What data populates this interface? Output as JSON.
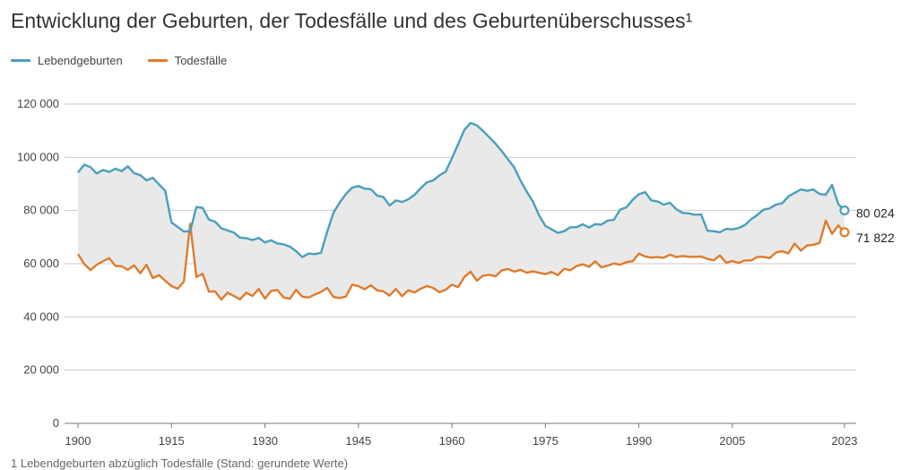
{
  "title": "Entwicklung der Geburten, der Todesfälle und des Geburtenüberschusses¹",
  "legend": [
    {
      "name": "Lebendgeburten",
      "color": "#4a9fbc"
    },
    {
      "name": "Todesfälle",
      "color": "#e07b2b"
    }
  ],
  "source_note": "1 Lebendgeburten abzüglich Todesfälle (Stand: gerundete Werte)",
  "chart_data": {
    "type": "line",
    "ylim": [
      0,
      120000
    ],
    "yticks": [
      0,
      20000,
      40000,
      60000,
      80000,
      100000,
      120000
    ],
    "ytick_labels": [
      "0",
      "20 000",
      "40 000",
      "60 000",
      "80 000",
      "100 000",
      "120 000"
    ],
    "xlim": [
      1900,
      2023
    ],
    "xticks": [
      1900,
      1915,
      1930,
      1945,
      1960,
      1975,
      1990,
      2005,
      2023
    ],
    "grid": true,
    "fill_between": true,
    "x_start": 1900,
    "series": [
      {
        "name": "Lebendgeburten",
        "color": "#4a9fbc",
        "end_label": "80 024",
        "values": [
          94300,
          97200,
          96300,
          93900,
          95200,
          94500,
          95700,
          94800,
          96600,
          94000,
          93300,
          91300,
          92300,
          89800,
          87400,
          75500,
          73800,
          72100,
          72200,
          81300,
          81000,
          76600,
          75800,
          73300,
          72500,
          71700,
          69800,
          69600,
          68900,
          69700,
          68000,
          68800,
          67600,
          67300,
          66400,
          64700,
          62500,
          63800,
          63600,
          64100,
          72100,
          79200,
          83000,
          86200,
          88600,
          89200,
          88200,
          88000,
          85600,
          85100,
          81900,
          83800,
          83200,
          84200,
          85900,
          88400,
          90600,
          91300,
          93200,
          94600,
          99600,
          104900,
          110300,
          112900,
          112000,
          109900,
          107500,
          105100,
          102300,
          99200,
          96200,
          91300,
          87100,
          83400,
          78100,
          74200,
          72900,
          71600,
          72200,
          73700,
          73700,
          74800,
          73600,
          74900,
          74700,
          76200,
          76500,
          80300,
          81200,
          84000,
          86100,
          86900,
          83800,
          83400,
          82200,
          82900,
          80500,
          79100,
          78900,
          78400,
          78500,
          72400,
          72200,
          71800,
          73100,
          72900,
          73400,
          74500,
          76700,
          78300,
          80300,
          80800,
          82200,
          82700,
          85300,
          86600,
          87900,
          87400,
          87900,
          86200,
          85900,
          89600,
          82400,
          80024
        ]
      },
      {
        "name": "Todesfälle",
        "color": "#e07b2b",
        "end_label": "71 822",
        "values": [
          63600,
          59900,
          57600,
          59600,
          60900,
          62100,
          59200,
          59000,
          57700,
          59400,
          56400,
          59600,
          54600,
          55700,
          53600,
          51600,
          50600,
          53300,
          75000,
          55000,
          56200,
          49500,
          49600,
          46500,
          49100,
          47900,
          46600,
          49100,
          47900,
          50500,
          46900,
          49800,
          50100,
          47300,
          46800,
          50200,
          47600,
          47300,
          48400,
          49400,
          50900,
          47500,
          47100,
          47700,
          52100,
          51600,
          50400,
          51900,
          50000,
          49600,
          48000,
          50500,
          47800,
          50000,
          49200,
          50600,
          51600,
          50900,
          49300,
          50200,
          52100,
          51200,
          55000,
          57000,
          53600,
          55500,
          55800,
          55300,
          57500,
          58000,
          57000,
          57700,
          56600,
          57100,
          56600,
          56100,
          56900,
          55700,
          58100,
          57500,
          59100,
          59800,
          58800,
          60900,
          58600,
          59300,
          60100,
          59600,
          60600,
          60900,
          63800,
          62700,
          62300,
          62500,
          62200,
          63400,
          62500,
          62900,
          62600,
          62600,
          62700,
          61800,
          61300,
          63100,
          60400,
          61000,
          60300,
          61200,
          61200,
          62500,
          62600,
          62100,
          64200,
          64700,
          63900,
          67600,
          64900,
          66900,
          67100,
          67800,
          76200,
          71200,
          74400,
          71822
        ]
      }
    ]
  }
}
